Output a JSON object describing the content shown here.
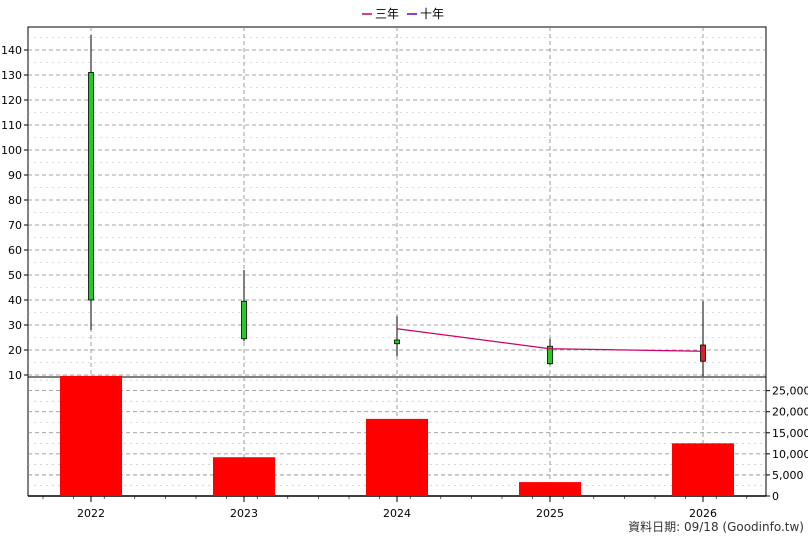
{
  "legend": [
    {
      "label": "三年",
      "color": "#cc0066"
    },
    {
      "label": "十年",
      "color": "#6600cc"
    }
  ],
  "footer": "資料日期: 09/18  (Goodinfo.tw)",
  "colors": {
    "up_candle": "#22cc22",
    "down_candle": "#dd2222",
    "volume_bar": "#ff0000",
    "grid": "#888888",
    "three_year_line": "#cc0066"
  },
  "chart_data": [
    {
      "type": "candlestick",
      "categories": [
        "2022",
        "2023",
        "2024",
        "2025",
        "2026"
      ],
      "candles": [
        {
          "x": "2022",
          "open": 131,
          "close": 40,
          "high": 146,
          "low": 28,
          "color": "green"
        },
        {
          "x": "2023",
          "open": 39.5,
          "close": 24.5,
          "high": 52,
          "low": 23.5,
          "color": "green"
        },
        {
          "x": "2024",
          "open": 24,
          "close": 22.5,
          "high": 33.5,
          "low": 17.5,
          "color": "green"
        },
        {
          "x": "2025",
          "open": 21.5,
          "close": 14.5,
          "high": 24.5,
          "low": 14,
          "color": "green"
        },
        {
          "x": "2026",
          "open": 15.5,
          "close": 22,
          "high": 39.5,
          "low": 9.5,
          "color": "red"
        }
      ],
      "series": [
        {
          "name": "三年",
          "x": [
            "2024",
            "2025",
            "2026"
          ],
          "values": [
            28.5,
            20.5,
            19.5
          ]
        }
      ],
      "yticks": [
        10,
        20,
        30,
        40,
        50,
        60,
        70,
        80,
        90,
        100,
        110,
        120,
        130,
        140
      ],
      "grid": true,
      "legend_position": "top-center"
    },
    {
      "type": "bar",
      "categories": [
        "2022",
        "2023",
        "2024",
        "2025",
        "2026"
      ],
      "values": [
        28500,
        9200,
        18300,
        3300,
        12500
      ],
      "yticks": [
        "0",
        "5,000",
        "10,000",
        "15,000",
        "20,000",
        "25,000"
      ],
      "ylim": [
        0,
        28000
      ],
      "grid": true
    }
  ]
}
